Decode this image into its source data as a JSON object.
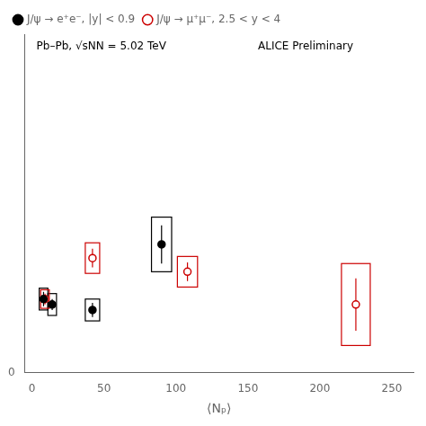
{
  "chart_data": {
    "type": "scatter",
    "xlabel": "⟨Nₚ⟩",
    "annotations": [
      "Pb–Pb, √sNN = 5.02 TeV",
      "ALICE Preliminary"
    ],
    "xlim": [
      -5,
      265
    ],
    "ylim": [
      0,
      0.62
    ],
    "xticks": [
      0,
      50,
      100,
      150,
      200,
      250
    ],
    "yticks": [
      0
    ],
    "grid": false,
    "legend": "upper left",
    "series": [
      {
        "name": "J/ψ → e⁺e⁻, |y| < 0.9",
        "color": "#000000",
        "marker": "circle",
        "x": [
          8,
          14,
          42,
          90
        ],
        "values": [
          0.135,
          0.125,
          0.115,
          0.235
        ],
        "stat_err": [
          0.013,
          0.01,
          0.013,
          0.035
        ],
        "sys_err_y": [
          0.02,
          0.02,
          0.02,
          0.05
        ],
        "sys_err_x": [
          3,
          3,
          5,
          7
        ]
      },
      {
        "name": "J/ψ → μ⁺μ⁻, 2.5 < y < 4",
        "color": "#cc0000",
        "marker": "open_circle",
        "x": [
          9,
          42,
          108,
          225
        ],
        "values": [
          0.135,
          0.21,
          0.185,
          0.125
        ],
        "stat_err": [
          0.01,
          0.017,
          0.017,
          0.048
        ],
        "sys_err_y": [
          0.017,
          0.028,
          0.028,
          0.075
        ],
        "sys_err_x": [
          3,
          5,
          7,
          10
        ]
      }
    ]
  }
}
